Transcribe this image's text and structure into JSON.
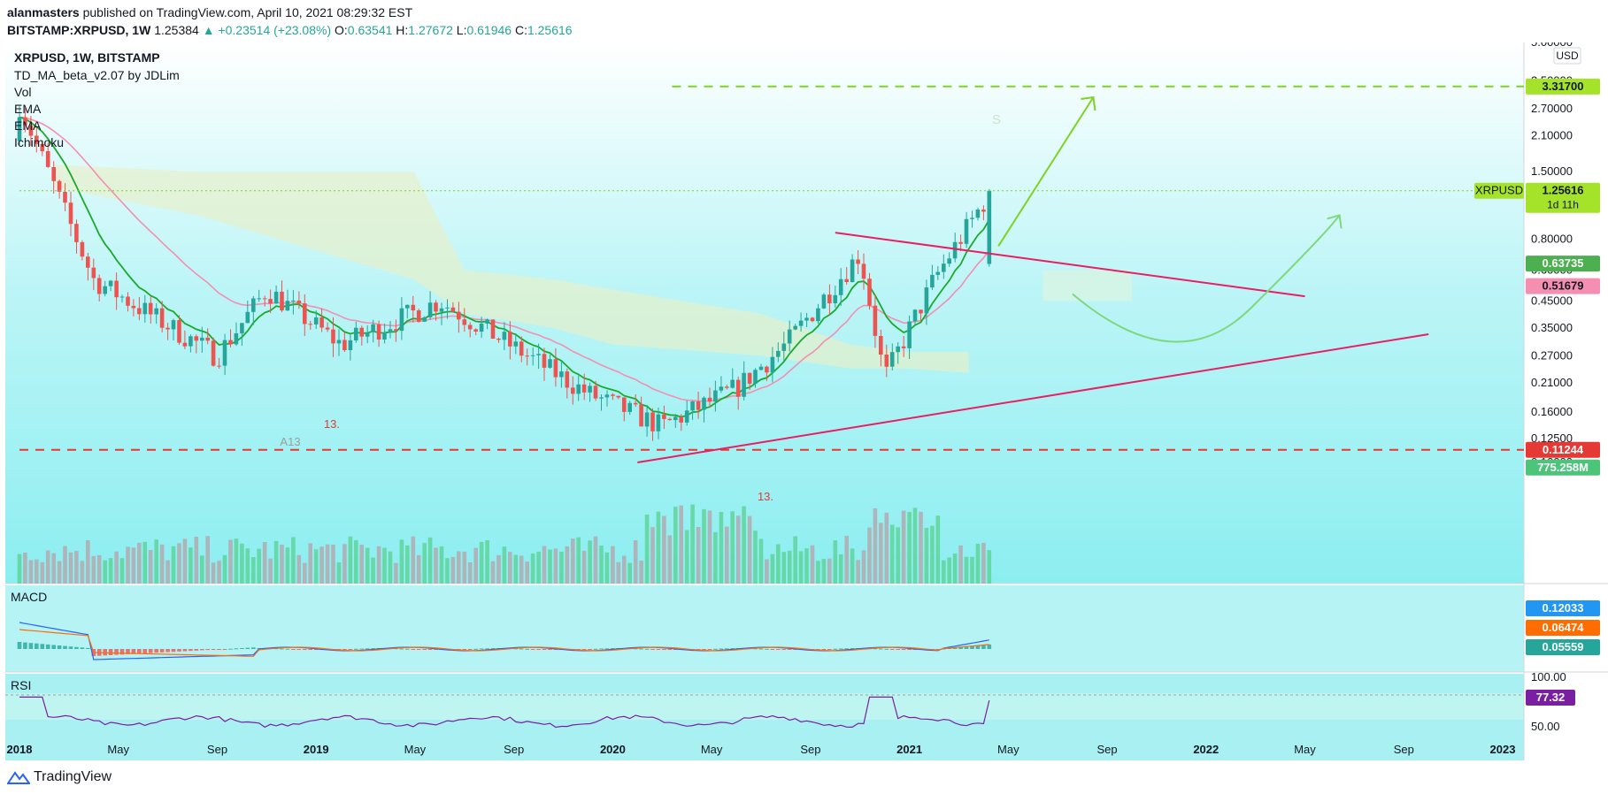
{
  "header": {
    "publisher": "alanmasters",
    "published_text": "published on TradingView.com, April 10, 2021 08:29:32 EST",
    "symbol_full": "BITSTAMP:XRPUSD, 1W",
    "price": "1.25384",
    "change": "▲ +0.23514 (+23.08%)",
    "o_label": "O:",
    "o_value": "0.63541",
    "h_label": "H:",
    "h_value": "1.27672",
    "l_label": "L:",
    "l_value": "0.61946",
    "c_label": "C:",
    "c_value": "1.25616"
  },
  "legend": {
    "title": "XRPUSD, 1W, BITSTAMP",
    "items": [
      "TD_MA_beta_v2.07 by JDLim",
      "Vol",
      "EMA",
      "EMA",
      "Ichimoku"
    ]
  },
  "price_axis": {
    "currency": "USD",
    "ticks": [
      "5.00000",
      "3.50000",
      "2.70000",
      "2.10000",
      "1.50000",
      "0.80000",
      "0.60000",
      "0.45000",
      "0.35000",
      "0.27000",
      "0.21000",
      "0.16000",
      "0.12500",
      "0.10000"
    ]
  },
  "badges": {
    "target": "3.31700",
    "symbol": "XRPUSD",
    "last": "1.25616",
    "countdown": "1d 11h",
    "ema_fast": "0.63735",
    "ema_slow": "0.51679",
    "support": "0.11244",
    "volume": "775.258M",
    "macd": "0.12033",
    "macd_signal": "0.06474",
    "macd_hist": "0.05559",
    "rsi": "77.32",
    "rsi_high": "100.00",
    "rsi_mid": "50.00"
  },
  "time_axis": {
    "labels": [
      "2018",
      "May",
      "Sep",
      "2019",
      "May",
      "Sep",
      "2020",
      "May",
      "Sep",
      "2021",
      "May",
      "Sep",
      "2022",
      "May",
      "Sep",
      "2023"
    ]
  },
  "panes": {
    "macd": "MACD",
    "rsi": "RSI"
  },
  "chart_labels": [
    "A13",
    "13.",
    "13.",
    "S"
  ],
  "colors": {
    "bull": "#26a69a",
    "bear": "#ef5350",
    "trend": "#e91e63",
    "arrow": "#7ed321",
    "ema_fast": "#1aaa2c",
    "ema_slow": "#f48fb1",
    "macd_line": "#2962ff",
    "signal_line": "#ff6d00",
    "rsi_line": "#7b1fa2"
  },
  "chart_data": {
    "type": "candlestick",
    "symbol": "XRPUSD",
    "timeframe": "1W",
    "exchange": "BITSTAMP",
    "scale": "log",
    "ylim": [
      0.1,
      5.0
    ],
    "x_range": [
      "2018-01",
      "2023-01"
    ],
    "key_points": [
      {
        "date": "2018-01",
        "price": 2.8
      },
      {
        "date": "2018-04",
        "price": 0.55
      },
      {
        "date": "2018-09",
        "price": 0.27
      },
      {
        "date": "2018-11",
        "price": 0.5
      },
      {
        "date": "2019-02",
        "price": 0.3
      },
      {
        "date": "2019-06",
        "price": 0.45
      },
      {
        "date": "2019-12",
        "price": 0.19
      },
      {
        "date": "2020-03",
        "price": 0.14
      },
      {
        "date": "2020-06",
        "price": 0.2
      },
      {
        "date": "2020-08",
        "price": 0.3
      },
      {
        "date": "2020-11",
        "price": 0.7
      },
      {
        "date": "2020-12",
        "price": 0.22
      },
      {
        "date": "2021-02",
        "price": 0.55
      },
      {
        "date": "2021-04",
        "price": 1.256
      }
    ],
    "horizontal_levels": [
      {
        "price": 3.317,
        "style": "dashed",
        "color": "#7ed321"
      },
      {
        "price": 0.11244,
        "style": "dashed",
        "color": "#e53935"
      },
      {
        "price": 1.25616,
        "style": "dotted",
        "color": "#7ed321"
      }
    ],
    "trendlines": [
      {
        "from": [
          "2020-10",
          0.85
        ],
        "to": [
          "2022-05",
          0.47
        ]
      },
      {
        "from": [
          "2020-02",
          0.1
        ],
        "to": [
          "2022-10",
          0.33
        ]
      }
    ],
    "indicators": {
      "macd": 0.12033,
      "signal": 0.06474,
      "hist": 0.05559,
      "rsi": 77.32,
      "volume": "775.258M"
    }
  }
}
